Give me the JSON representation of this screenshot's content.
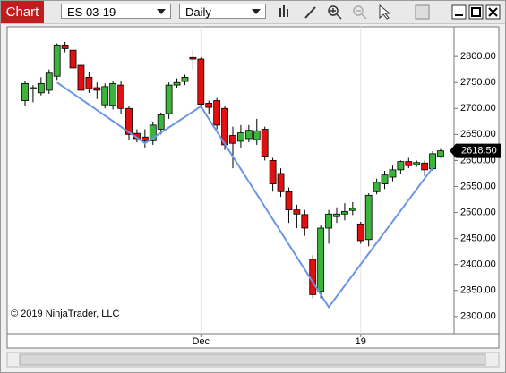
{
  "toolbar": {
    "tab": "Chart",
    "instrument": "ES 03-19",
    "interval": "Daily"
  },
  "chart_data": {
    "type": "candlestick",
    "categories": [
      null,
      null,
      null,
      null,
      null,
      null,
      null,
      null,
      null,
      null,
      null,
      null,
      null,
      null,
      null,
      null,
      null,
      null,
      null,
      null,
      null,
      null,
      "Dec",
      null,
      null,
      null,
      null,
      null,
      null,
      null,
      null,
      null,
      null,
      null,
      null,
      null,
      null,
      null,
      null,
      null,
      null,
      null,
      "19",
      null,
      null,
      null,
      null,
      null,
      null,
      null,
      null,
      null,
      null
    ],
    "open": [
      2715,
      2738,
      2730,
      2735,
      2762,
      2822,
      2812,
      2783,
      2760,
      2740,
      2707,
      2706,
      2745,
      2700,
      2652,
      2645,
      2638,
      2660,
      2690,
      2745,
      2752,
      2798,
      2795,
      2710,
      2715,
      2700,
      2648,
      2637,
      2642,
      2640,
      2660,
      2600,
      2575,
      2540,
      2505,
      2496,
      2410,
      2348,
      2470,
      2492,
      2497,
      2504,
      2478,
      2448,
      2540,
      2555,
      2568,
      2582,
      2598,
      2592,
      2595,
      2584,
      2608
    ],
    "high": [
      2752,
      2745,
      2760,
      2775,
      2825,
      2828,
      2815,
      2790,
      2770,
      2750,
      2748,
      2752,
      2752,
      2705,
      2660,
      2660,
      2675,
      2692,
      2750,
      2758,
      2765,
      2813,
      2798,
      2715,
      2720,
      2705,
      2665,
      2668,
      2668,
      2680,
      2665,
      2605,
      2585,
      2548,
      2515,
      2505,
      2418,
      2475,
      2505,
      2510,
      2518,
      2520,
      2482,
      2537,
      2565,
      2580,
      2590,
      2600,
      2605,
      2600,
      2600,
      2618,
      2622
    ],
    "low": [
      2705,
      2712,
      2725,
      2728,
      2755,
      2808,
      2770,
      2725,
      2730,
      2718,
      2700,
      2698,
      2690,
      2640,
      2635,
      2625,
      2630,
      2650,
      2680,
      2740,
      2745,
      2775,
      2700,
      2690,
      2660,
      2620,
      2585,
      2625,
      2635,
      2630,
      2600,
      2540,
      2530,
      2480,
      2470,
      2455,
      2335,
      2335,
      2440,
      2480,
      2485,
      2495,
      2440,
      2435,
      2535,
      2545,
      2560,
      2575,
      2585,
      2588,
      2570,
      2580,
      2605
    ],
    "close": [
      2748,
      2740,
      2748,
      2768,
      2822,
      2815,
      2778,
      2735,
      2738,
      2735,
      2742,
      2748,
      2700,
      2650,
      2642,
      2638,
      2668,
      2688,
      2745,
      2750,
      2760,
      2795,
      2708,
      2702,
      2668,
      2630,
      2633,
      2653,
      2658,
      2657,
      2608,
      2555,
      2540,
      2505,
      2497,
      2470,
      2342,
      2470,
      2497,
      2497,
      2502,
      2508,
      2446,
      2533,
      2558,
      2572,
      2582,
      2598,
      2590,
      2596,
      2582,
      2613,
      2618.5
    ],
    "up_color": "#3cb43c",
    "down_color": "#e01010",
    "ylim": [
      2267,
      2857
    ],
    "yticks": [
      {
        "value": 2300,
        "label": "2300.00"
      },
      {
        "value": 2350,
        "label": "2350.00"
      },
      {
        "value": 2400,
        "label": "2400.00"
      },
      {
        "value": 2450,
        "label": "2450.00"
      },
      {
        "value": 2500,
        "label": "2500.00"
      },
      {
        "value": 2550,
        "label": "2550.00"
      },
      {
        "value": 2600,
        "label": "2600.00"
      },
      {
        "value": 2650,
        "label": "2650.00"
      },
      {
        "value": 2700,
        "label": "2700.00"
      },
      {
        "value": 2750,
        "label": "2750.00"
      },
      {
        "value": 2800,
        "label": "2800.00"
      }
    ],
    "last_price": {
      "value": 2618.5,
      "label": "2618.50"
    },
    "trendline": {
      "x": [
        4,
        15,
        22,
        38,
        51
      ],
      "y": [
        2750,
        2633,
        2704,
        2318,
        2586
      ],
      "color": "#6a96e6"
    },
    "copyright": "© 2019 NinjaTrader, LLC"
  }
}
